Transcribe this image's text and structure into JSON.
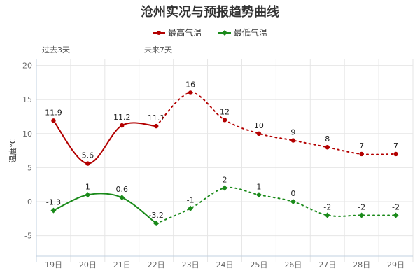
{
  "chart_data": {
    "type": "line",
    "title": "沧州实况与预报趋势曲线",
    "ylabel": "温度°C",
    "xlabel": "",
    "categories": [
      "19日",
      "20日",
      "21日",
      "22日",
      "23日",
      "24日",
      "25日",
      "26日",
      "27日",
      "28日",
      "29日"
    ],
    "ylim": [
      -5,
      20
    ],
    "yticks": [
      -5,
      0,
      5,
      10,
      15,
      20
    ],
    "grid": true,
    "legend_position": "top-center",
    "period_labels": [
      "过去3天",
      "未来7天"
    ],
    "observed_until_index": 3,
    "series": [
      {
        "name": "最高气温",
        "color": "#b30000",
        "values": [
          11.9,
          5.6,
          11.2,
          11.1,
          16,
          12,
          10,
          9,
          8,
          7,
          7
        ],
        "labels": [
          "11.9",
          "5.6",
          "11.2",
          "11.1",
          "16",
          "12",
          "10",
          "9",
          "8",
          "7",
          "7"
        ]
      },
      {
        "name": "最低气温",
        "color": "#1a8a1a",
        "values": [
          -1.3,
          1,
          0.6,
          -3.2,
          -1,
          2,
          1,
          0,
          -2,
          -2,
          -2
        ],
        "labels": [
          "-1.3",
          "1",
          "0.6",
          "-3.2",
          "-1",
          "2",
          "1",
          "0",
          "-2",
          "-2",
          "-2"
        ]
      }
    ]
  }
}
